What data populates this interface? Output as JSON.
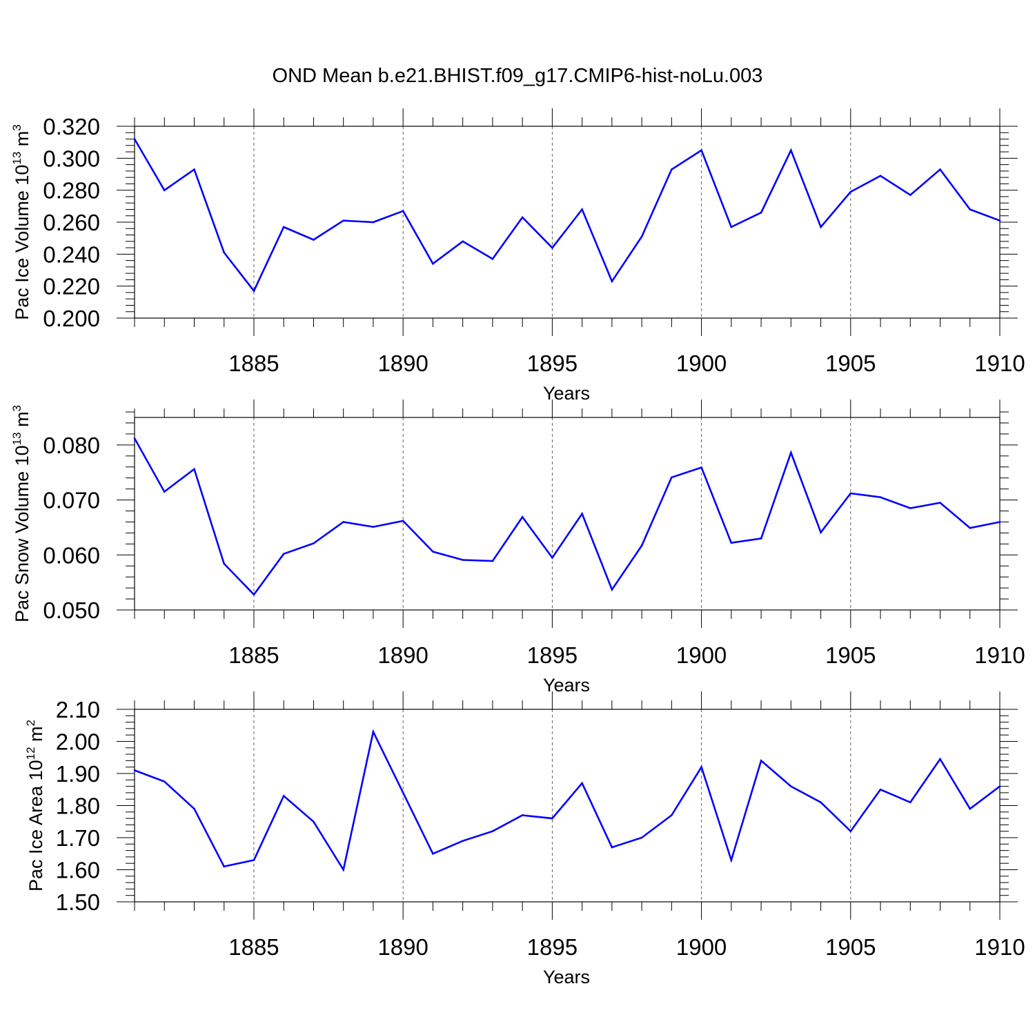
{
  "title": "OND Mean b.e21.BHIST.f09_g17.CMIP6-hist-noLu.003",
  "colors": {
    "line": "#0000ff",
    "axis": "#000000",
    "grid": "#000000"
  },
  "chart_data": [
    {
      "type": "line",
      "xlabel": "Years",
      "ylabel_prefix": "Pac Ice Volume 10",
      "ylabel_exp": "13",
      "ylabel_unit": " m",
      "ylabel_unit_exp": "3",
      "xlim": [
        1881,
        1910
      ],
      "ylim": [
        0.2,
        0.32
      ],
      "yticks": [
        "0.200",
        "0.220",
        "0.240",
        "0.260",
        "0.280",
        "0.300",
        "0.320"
      ],
      "xticks": [
        "1885",
        "1890",
        "1895",
        "1900",
        "1905",
        "1910"
      ],
      "grid": "vertical dashed at major x ticks",
      "x": [
        1881,
        1882,
        1883,
        1884,
        1885,
        1886,
        1887,
        1888,
        1889,
        1890,
        1891,
        1892,
        1893,
        1894,
        1895,
        1896,
        1897,
        1898,
        1899,
        1900,
        1901,
        1902,
        1903,
        1904,
        1905,
        1906,
        1907,
        1908,
        1909,
        1910
      ],
      "values": [
        0.312,
        0.28,
        0.293,
        0.241,
        0.217,
        0.257,
        0.249,
        0.261,
        0.26,
        0.267,
        0.234,
        0.248,
        0.237,
        0.263,
        0.244,
        0.268,
        0.223,
        0.251,
        0.293,
        0.305,
        0.257,
        0.266,
        0.305,
        0.257,
        0.279,
        0.289,
        0.277,
        0.293,
        0.268,
        0.261
      ]
    },
    {
      "type": "line",
      "xlabel": "Years",
      "ylabel_prefix": "Pac Snow Volume 10",
      "ylabel_exp": "13",
      "ylabel_unit": " m",
      "ylabel_unit_exp": "3",
      "xlim": [
        1881,
        1910
      ],
      "ylim": [
        0.05,
        0.085
      ],
      "yticks": [
        "0.050",
        "0.060",
        "0.070",
        "0.080"
      ],
      "xticks": [
        "1885",
        "1890",
        "1895",
        "1900",
        "1905",
        "1910"
      ],
      "grid": "vertical dashed at major x ticks",
      "x": [
        1881,
        1882,
        1883,
        1884,
        1885,
        1886,
        1887,
        1888,
        1889,
        1890,
        1891,
        1892,
        1893,
        1894,
        1895,
        1896,
        1897,
        1898,
        1899,
        1900,
        1901,
        1902,
        1903,
        1904,
        1905,
        1906,
        1907,
        1908,
        1909,
        1910
      ],
      "values": [
        0.0812,
        0.0715,
        0.0756,
        0.0584,
        0.0528,
        0.0602,
        0.0621,
        0.066,
        0.0651,
        0.0662,
        0.0606,
        0.0591,
        0.0589,
        0.0669,
        0.0595,
        0.0675,
        0.0537,
        0.0617,
        0.0741,
        0.0759,
        0.0622,
        0.063,
        0.0786,
        0.0641,
        0.0712,
        0.0705,
        0.0685,
        0.0695,
        0.0649,
        0.066
      ]
    },
    {
      "type": "line",
      "xlabel": "Years",
      "ylabel_prefix": "Pac Ice Area 10",
      "ylabel_exp": "12",
      "ylabel_unit": " m",
      "ylabel_unit_exp": "2",
      "xlim": [
        1881,
        1910
      ],
      "ylim": [
        1.5,
        2.1
      ],
      "yticks": [
        "1.50",
        "1.60",
        "1.70",
        "1.80",
        "1.90",
        "2.00",
        "2.10"
      ],
      "xticks": [
        "1885",
        "1890",
        "1895",
        "1900",
        "1905",
        "1910"
      ],
      "grid": "vertical dashed at major x ticks",
      "x": [
        1881,
        1882,
        1883,
        1884,
        1885,
        1886,
        1887,
        1888,
        1889,
        1890,
        1891,
        1892,
        1893,
        1894,
        1895,
        1896,
        1897,
        1898,
        1899,
        1900,
        1901,
        1902,
        1903,
        1904,
        1905,
        1906,
        1907,
        1908,
        1909,
        1910
      ],
      "values": [
        1.91,
        1.875,
        1.79,
        1.61,
        1.63,
        1.83,
        1.75,
        1.6,
        2.03,
        1.84,
        1.65,
        1.69,
        1.72,
        1.77,
        1.76,
        1.87,
        1.67,
        1.7,
        1.77,
        1.92,
        1.63,
        1.94,
        1.86,
        1.81,
        1.72,
        1.85,
        1.81,
        1.945,
        1.79,
        1.86
      ]
    }
  ]
}
